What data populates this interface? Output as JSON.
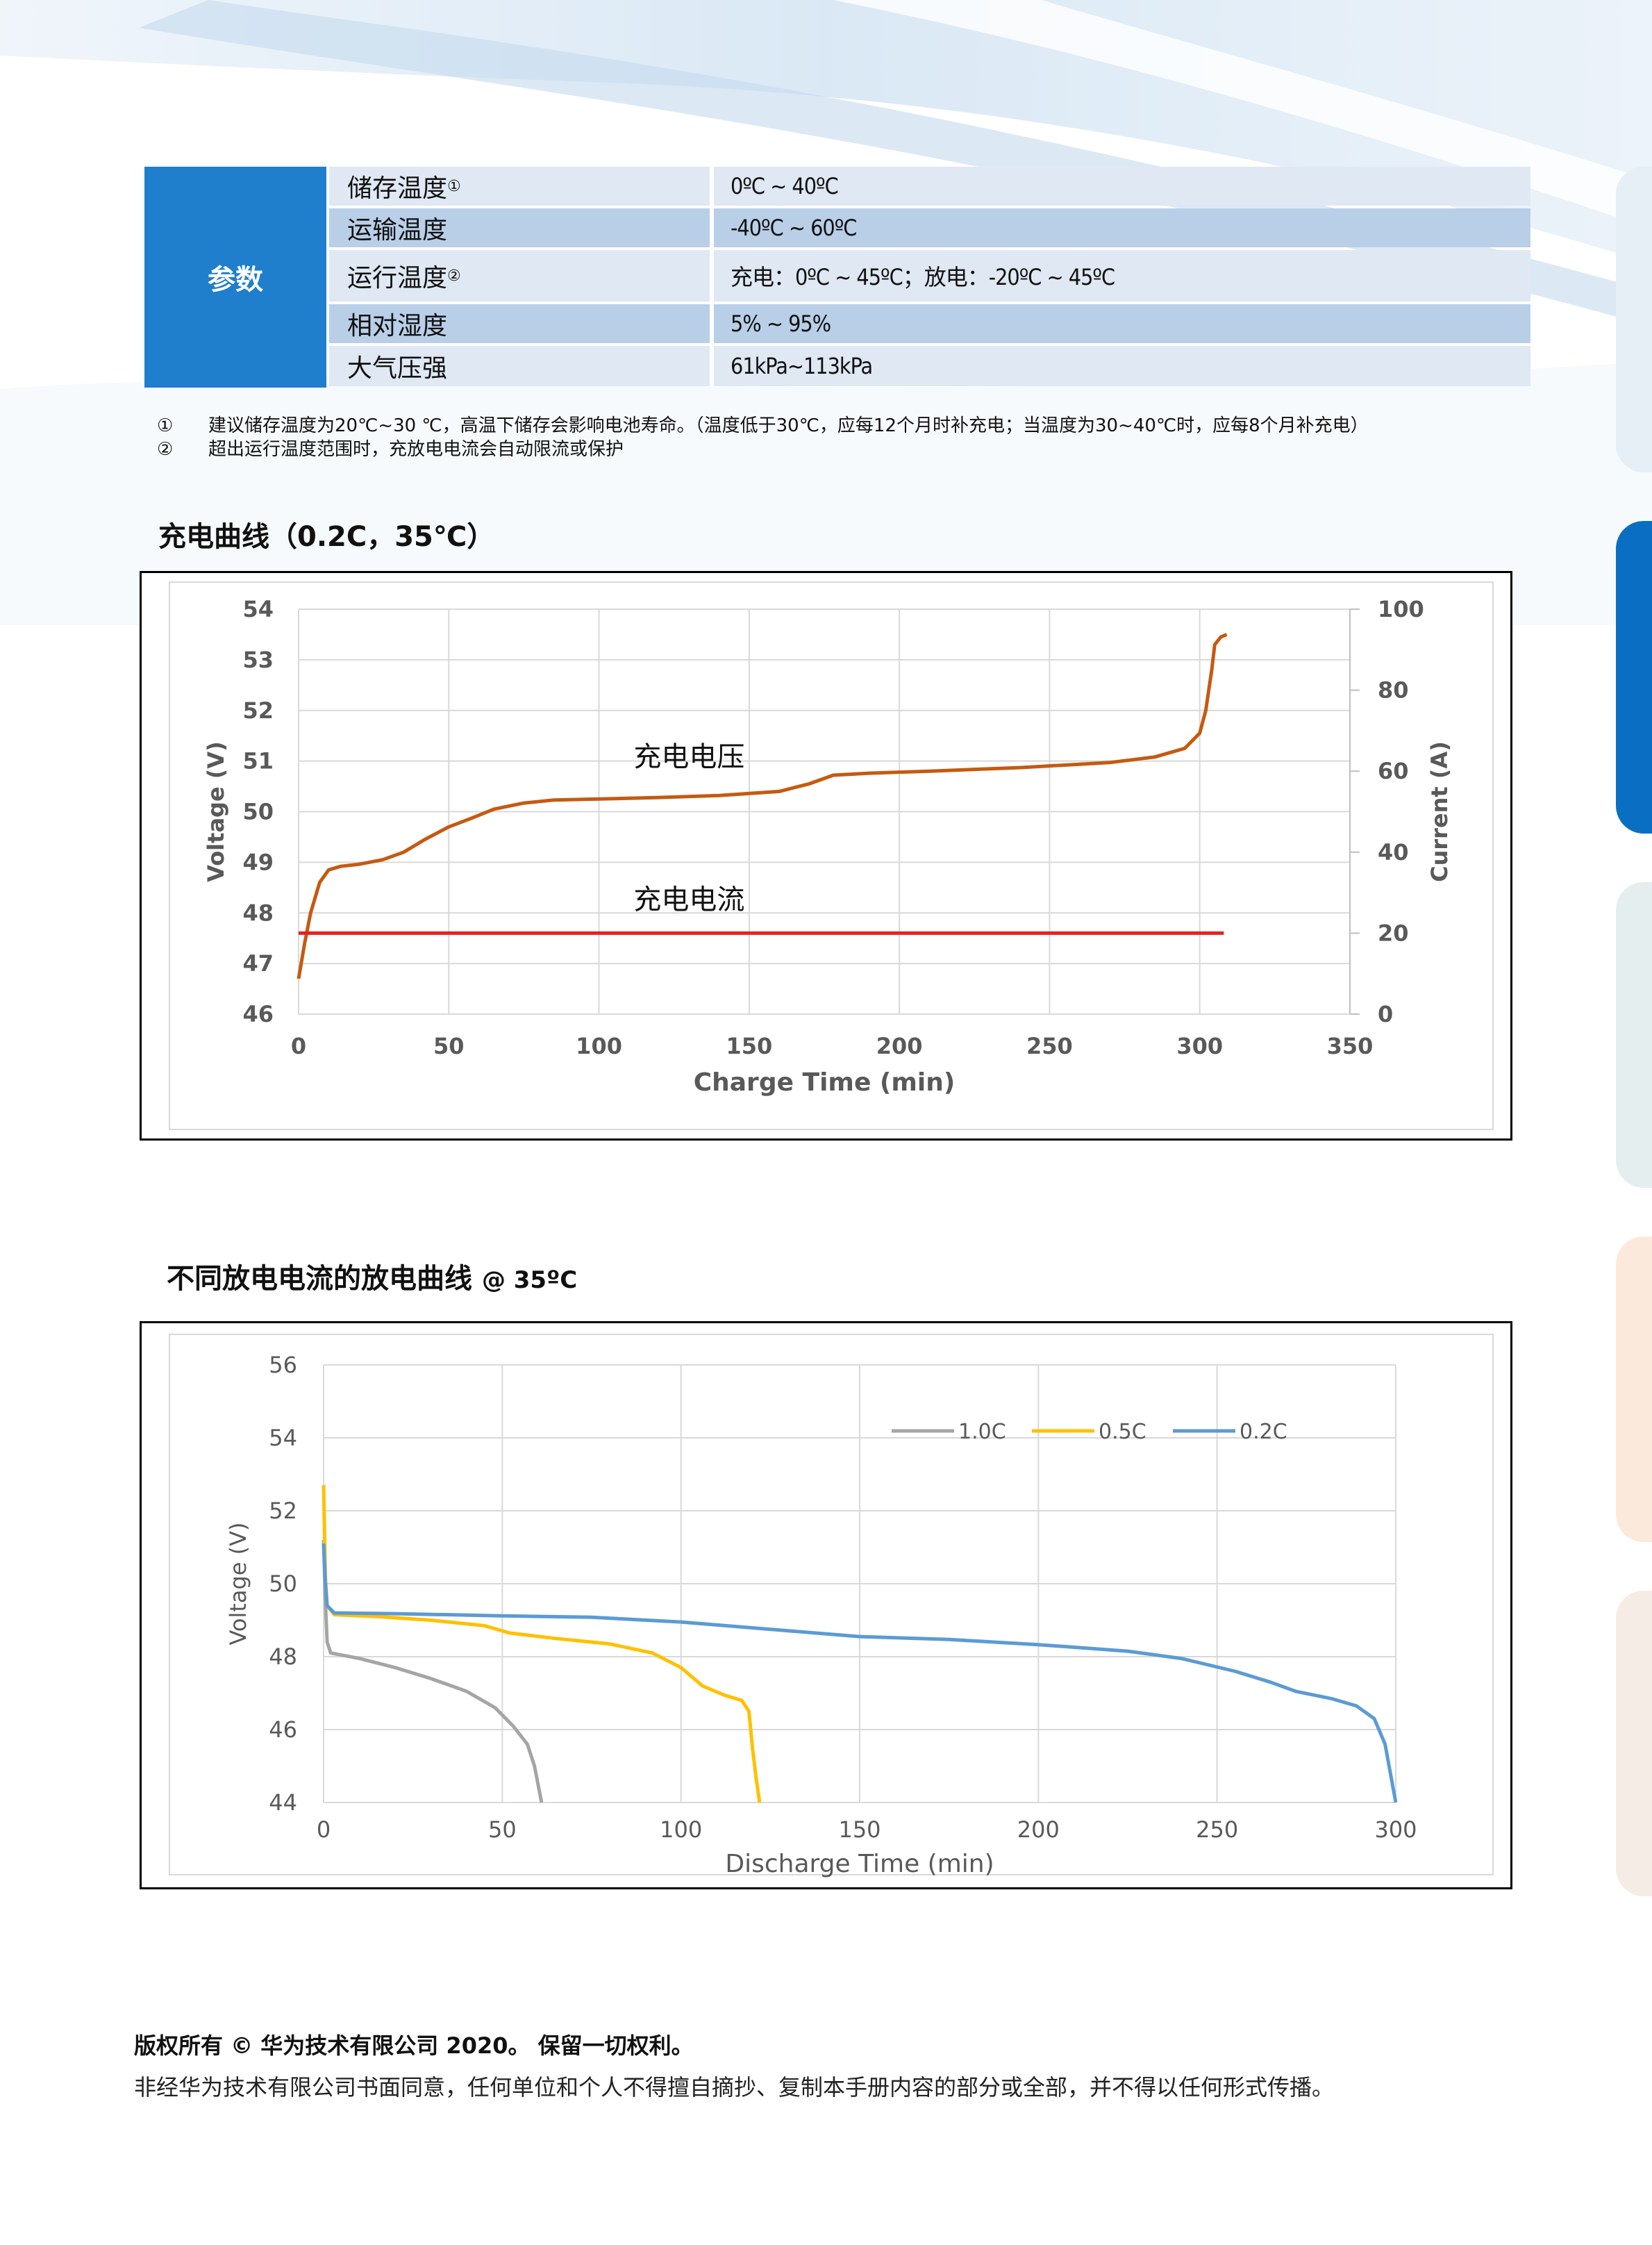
{
  "params": {
    "header": "参数",
    "rows": [
      {
        "name": "储存温度",
        "mark": "①",
        "value": "0ºC ~ 40ºC"
      },
      {
        "name": "运输温度",
        "mark": "",
        "value": "-40ºC ~ 60ºC"
      },
      {
        "name": "运行温度",
        "mark": "②",
        "value": "充电：0ºC ~ 45ºC；放电：-20ºC ~ 45ºC"
      },
      {
        "name": "相对湿度",
        "mark": "",
        "value": "5% ~ 95%"
      },
      {
        "name": "大气压强",
        "mark": "",
        "value": "61kPa~113kPa"
      }
    ]
  },
  "notes": [
    {
      "mark": "①",
      "text": "建议储存温度为20℃~30 ℃，高温下储存会影响电池寿命。（温度低于30℃，应每12个月时补充电；当温度为30~40℃时，应每8个月补充电）"
    },
    {
      "mark": "②",
      "text": "超出运行温度范围时，充放电电流会自动限流或保护"
    }
  ],
  "charge_section": {
    "title": "充电曲线",
    "subtitle": "（0.2C，35℃）"
  },
  "discharge_section": {
    "title": "不同放电电流的放电曲线",
    "subtitle": "@ 35ºC"
  },
  "chart_data": [
    {
      "type": "line",
      "xlabel": "Charge Time (min)",
      "ylabel": "Voltage (V)",
      "y2label": "Current (A)",
      "xlim": [
        0,
        350
      ],
      "ylim": [
        46,
        54
      ],
      "y2lim": [
        0,
        100
      ],
      "xticks": [
        0,
        50,
        100,
        150,
        200,
        250,
        300,
        350
      ],
      "yticks": [
        46,
        47,
        48,
        49,
        50,
        51,
        52,
        53,
        54
      ],
      "y2ticks": [
        0,
        20,
        40,
        60,
        80,
        100
      ],
      "grid": true,
      "series": [
        {
          "name": "充电电压",
          "axis": "left",
          "color": "#c55a11",
          "points": [
            [
              0,
              46.7
            ],
            [
              2,
              47.4
            ],
            [
              4,
              48.0
            ],
            [
              7,
              48.6
            ],
            [
              10,
              48.85
            ],
            [
              14,
              48.92
            ],
            [
              20,
              48.96
            ],
            [
              28,
              49.05
            ],
            [
              35,
              49.2
            ],
            [
              42,
              49.45
            ],
            [
              50,
              49.7
            ],
            [
              58,
              49.88
            ],
            [
              65,
              50.05
            ],
            [
              75,
              50.17
            ],
            [
              85,
              50.23
            ],
            [
              100,
              50.25
            ],
            [
              120,
              50.28
            ],
            [
              140,
              50.32
            ],
            [
              160,
              50.4
            ],
            [
              170,
              50.55
            ],
            [
              178,
              50.72
            ],
            [
              190,
              50.76
            ],
            [
              210,
              50.8
            ],
            [
              240,
              50.87
            ],
            [
              270,
              50.97
            ],
            [
              285,
              51.08
            ],
            [
              295,
              51.25
            ],
            [
              300,
              51.55
            ],
            [
              302,
              52.0
            ],
            [
              304,
              52.8
            ],
            [
              305,
              53.3
            ],
            [
              307,
              53.45
            ],
            [
              309,
              53.5
            ]
          ]
        },
        {
          "name": "充电电流",
          "axis": "right",
          "color": "#e82020",
          "points": [
            [
              0,
              20
            ],
            [
              308,
              20
            ]
          ]
        }
      ]
    },
    {
      "type": "line",
      "xlabel": "Discharge Time (min)",
      "ylabel": "Voltage (V)",
      "xlim": [
        0,
        300
      ],
      "ylim": [
        44,
        56
      ],
      "xticks": [
        0,
        50,
        100,
        150,
        200,
        250,
        300
      ],
      "yticks": [
        44,
        46,
        48,
        50,
        52,
        54,
        56
      ],
      "grid": true,
      "legend_position": "top-right",
      "series": [
        {
          "name": "1.0C",
          "color": "#a5a5a5",
          "points": [
            [
              0,
              51.2
            ],
            [
              0.5,
              49.5
            ],
            [
              1,
              48.4
            ],
            [
              2,
              48.1
            ],
            [
              10,
              47.95
            ],
            [
              20,
              47.7
            ],
            [
              30,
              47.4
            ],
            [
              40,
              47.05
            ],
            [
              48,
              46.6
            ],
            [
              53,
              46.1
            ],
            [
              57,
              45.6
            ],
            [
              59,
              45.0
            ],
            [
              61,
              44.0
            ]
          ]
        },
        {
          "name": "0.5C",
          "color": "#ffc000",
          "points": [
            [
              0,
              52.7
            ],
            [
              0.5,
              50.2
            ],
            [
              1,
              49.4
            ],
            [
              3,
              49.15
            ],
            [
              15,
              49.1
            ],
            [
              30,
              49.0
            ],
            [
              45,
              48.85
            ],
            [
              52,
              48.65
            ],
            [
              65,
              48.5
            ],
            [
              80,
              48.35
            ],
            [
              92,
              48.1
            ],
            [
              100,
              47.7
            ],
            [
              106,
              47.2
            ],
            [
              112,
              46.95
            ],
            [
              117,
              46.8
            ],
            [
              119,
              46.5
            ],
            [
              120,
              45.5
            ],
            [
              121,
              44.7
            ],
            [
              122,
              44.0
            ]
          ]
        },
        {
          "name": "0.2C",
          "color": "#5b9bd5",
          "points": [
            [
              0,
              51.1
            ],
            [
              0.5,
              50.0
            ],
            [
              1,
              49.4
            ],
            [
              3,
              49.2
            ],
            [
              20,
              49.18
            ],
            [
              50,
              49.12
            ],
            [
              75,
              49.08
            ],
            [
              100,
              48.95
            ],
            [
              125,
              48.75
            ],
            [
              150,
              48.55
            ],
            [
              175,
              48.47
            ],
            [
              200,
              48.33
            ],
            [
              225,
              48.15
            ],
            [
              240,
              47.95
            ],
            [
              255,
              47.6
            ],
            [
              265,
              47.3
            ],
            [
              272,
              47.05
            ],
            [
              282,
              46.85
            ],
            [
              289,
              46.65
            ],
            [
              294,
              46.3
            ],
            [
              297,
              45.6
            ],
            [
              300,
              44.0
            ]
          ]
        }
      ]
    }
  ],
  "footer": {
    "line1": "版权所有 © 华为技术有限公司 2020。 保留一切权利。",
    "line2": "非经华为技术有限公司书面同意，任何单位和个人不得擅自摘抄、复制本手册内容的部分或全部，并不得以任何形式传播。"
  }
}
